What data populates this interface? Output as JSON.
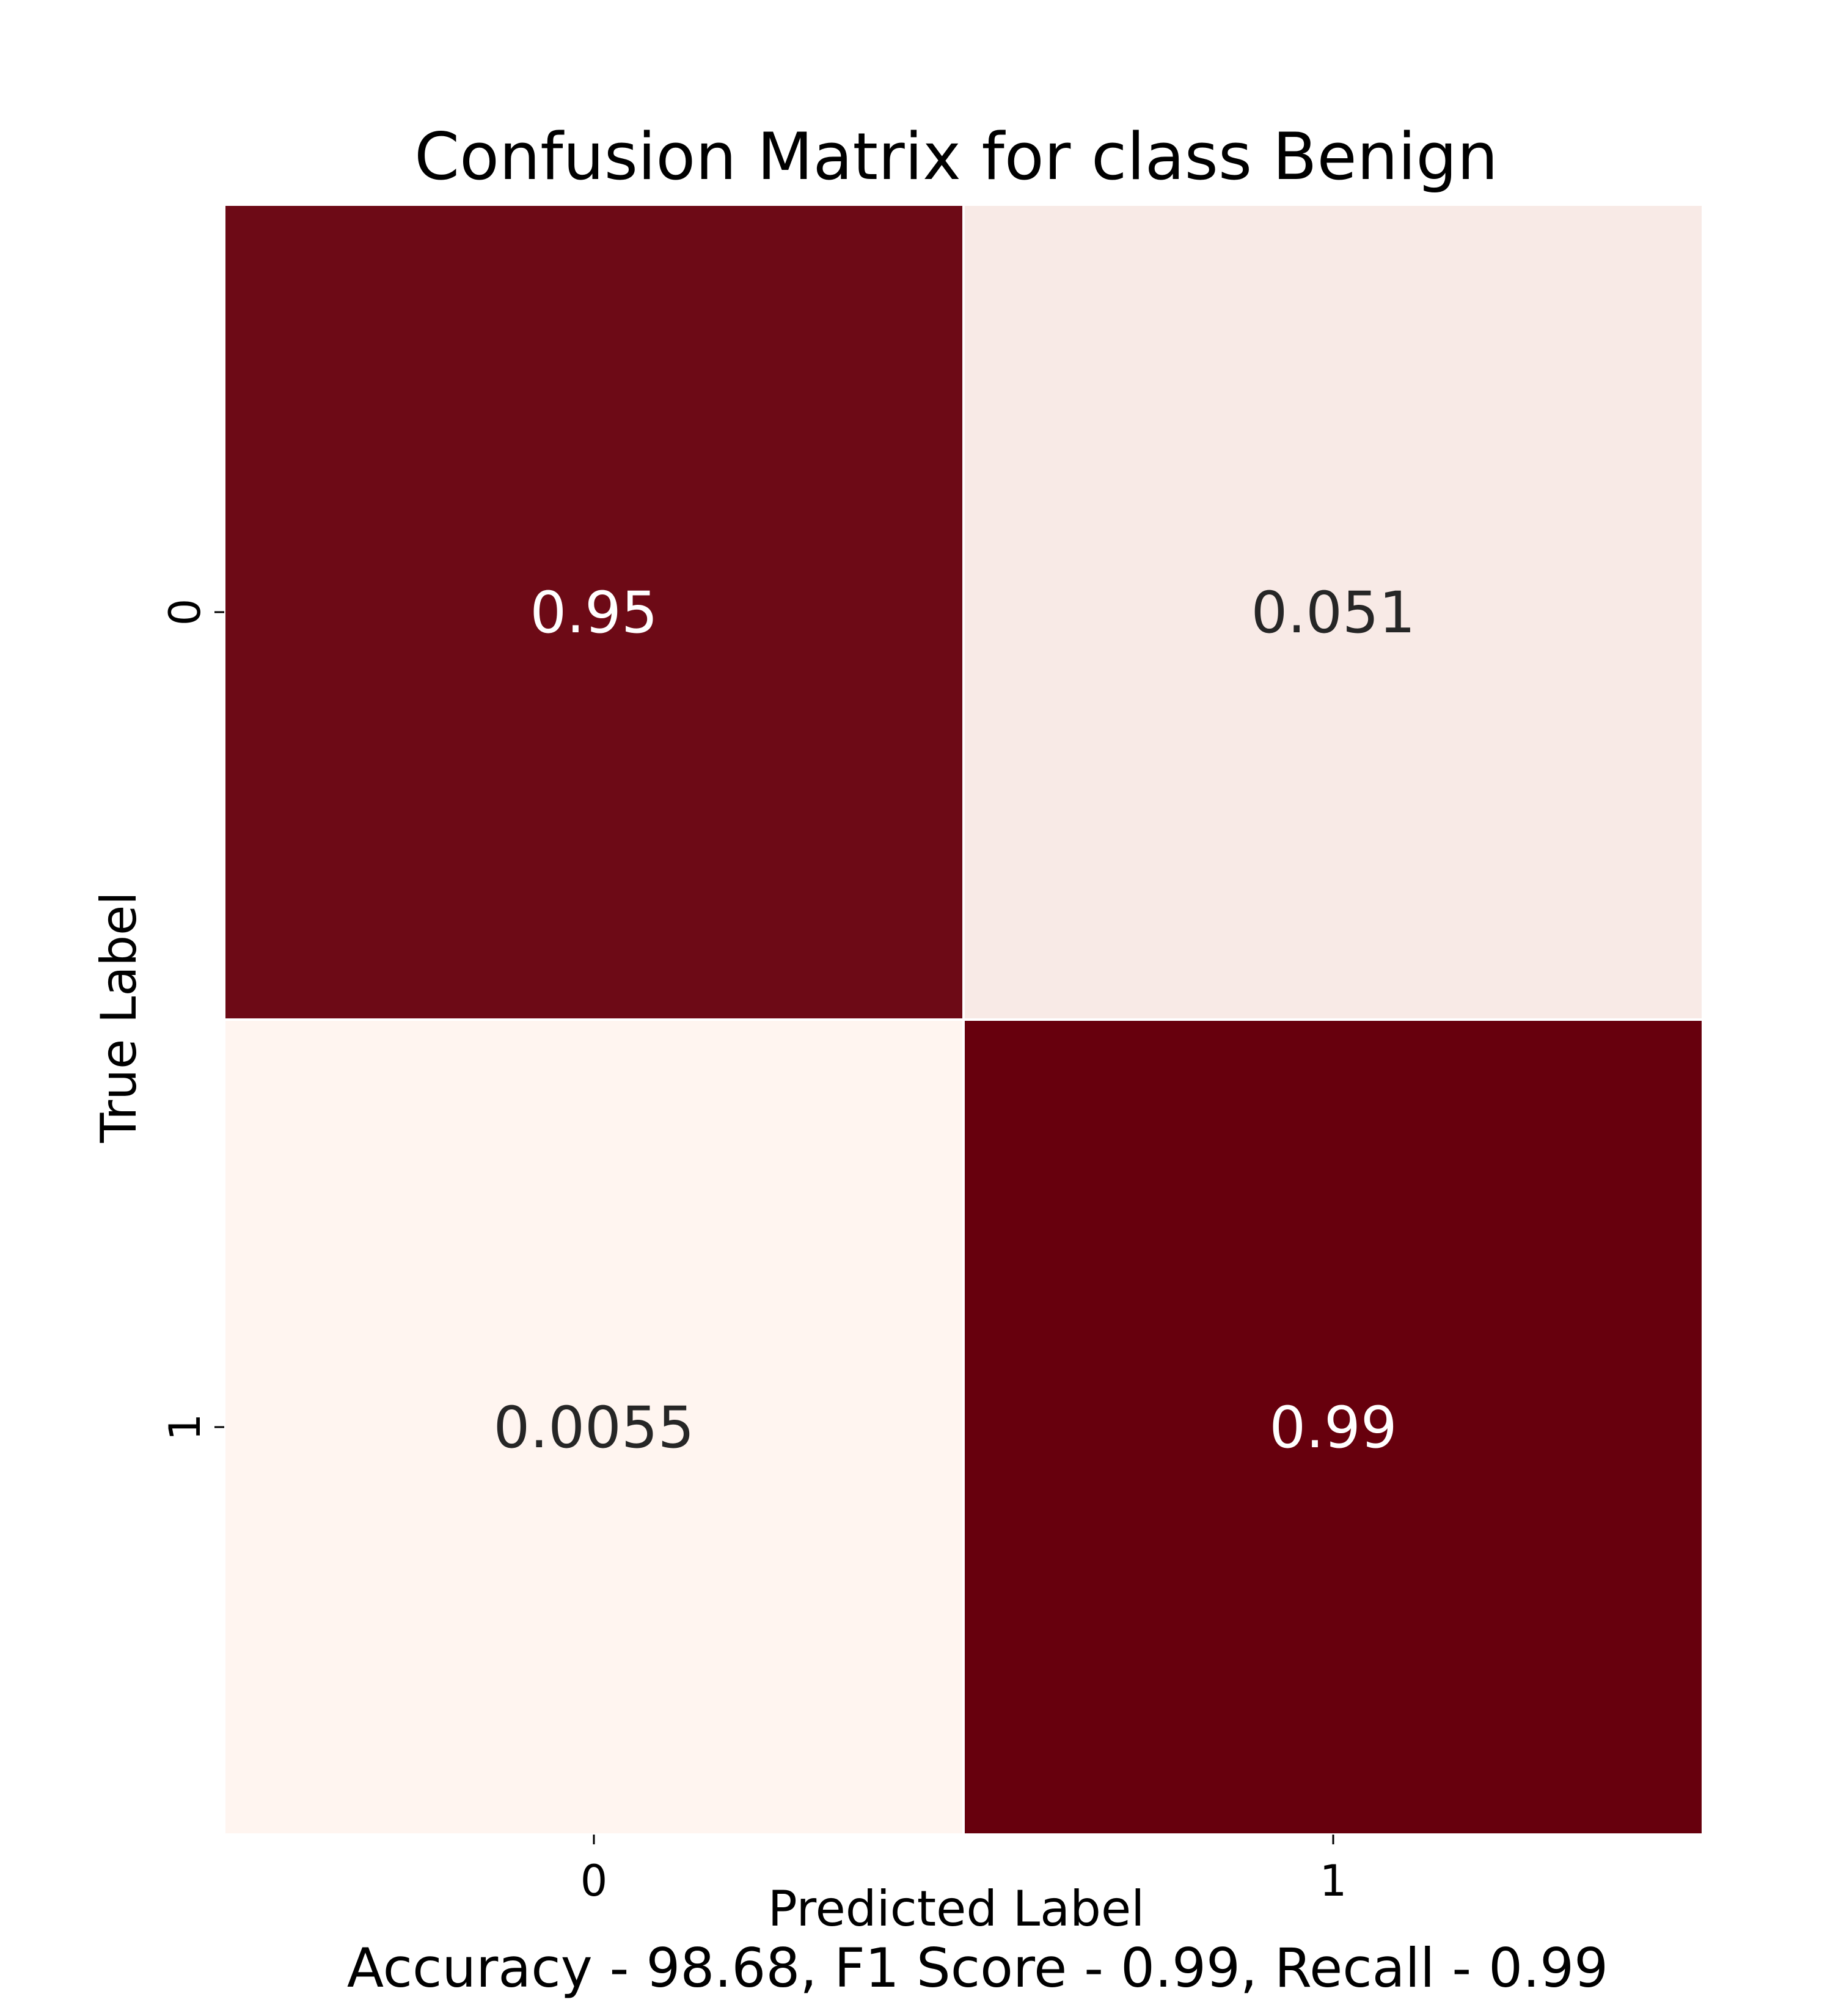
{
  "chart_data": {
    "type": "heatmap",
    "title": "Confusion Matrix for class Benign",
    "xlabel": "Predicted Label",
    "ylabel": "True Label",
    "caption": "Accuracy - 98.68, F1 Score - 0.99, Recall - 0.99",
    "x_categories": [
      "0",
      "1"
    ],
    "y_categories": [
      "0",
      "1"
    ],
    "values": [
      [
        0.95,
        0.051
      ],
      [
        0.0055,
        0.99
      ]
    ],
    "value_labels": [
      [
        "0.95",
        "0.051"
      ],
      [
        "0.0055",
        "0.99"
      ]
    ],
    "colormap": "Reds",
    "colors": {
      "low": "#fff5f0",
      "high": "#67000d"
    }
  }
}
